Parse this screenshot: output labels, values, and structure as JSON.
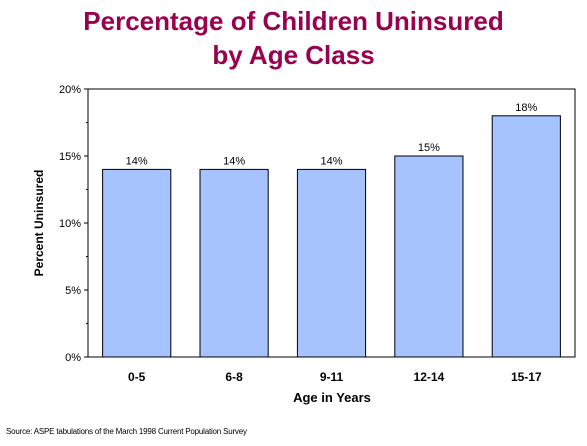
{
  "chart_data": {
    "type": "bar",
    "title_lines": [
      "Percentage of Children Uninsured",
      "by Age Class"
    ],
    "categories": [
      "0-5",
      "6-8",
      "9-11",
      "12-14",
      "15-17"
    ],
    "values": [
      14,
      14,
      14,
      15,
      18
    ],
    "data_labels": [
      "14%",
      "14%",
      "14%",
      "15%",
      "18%"
    ],
    "xlabel": "Age in Years",
    "ylabel": "Percent Uninsured",
    "ylim": [
      0,
      20
    ],
    "yticks": [
      0,
      5,
      10,
      15,
      20
    ],
    "ytick_labels": [
      "0%",
      "5%",
      "10%",
      "15%",
      "20%"
    ],
    "grid": false,
    "colors": {
      "bar": "#a6c2ff",
      "bar_border": "#000000",
      "plot_area": "#ffffff",
      "title": "#99004d"
    }
  },
  "source": "Source: ASPE tabulations of the March 1998 Current Population Survey"
}
